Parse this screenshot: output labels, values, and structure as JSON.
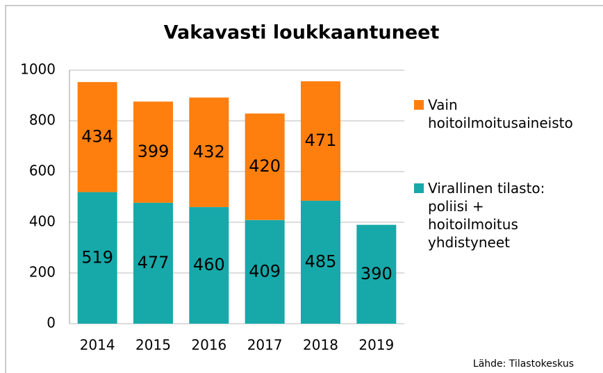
{
  "chart_data": {
    "type": "bar",
    "stacked": true,
    "title": "Vakavasti loukkaantuneet",
    "categories": [
      "2014",
      "2015",
      "2016",
      "2017",
      "2018",
      "2019"
    ],
    "series": [
      {
        "name": "Virallinen tilasto: poliisi + hoitoilmoitus yhdistyneet",
        "color": "#17a9a9",
        "values": [
          519,
          477,
          460,
          409,
          485,
          390
        ]
      },
      {
        "name": "Vain hoitoilmoitusaineisto",
        "color": "#ff7f0e",
        "values": [
          434,
          399,
          432,
          420,
          471,
          null
        ]
      }
    ],
    "ylim": [
      0,
      1000
    ],
    "yticks": [
      0,
      200,
      400,
      600,
      800,
      1000
    ],
    "grid": true,
    "source": "Lähde: Tilastokeskus"
  }
}
